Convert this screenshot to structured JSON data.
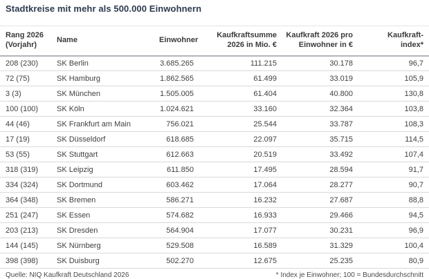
{
  "title": "Stadtkreise mit mehr als 500.000 Einwohnern",
  "colors": {
    "title_text": "#2c3a4e",
    "body_text": "#3f3f3f",
    "row_divider": "#d9d9dd",
    "header_rule": "#b2b4bc",
    "background": "#ffffff"
  },
  "table": {
    "columns": [
      {
        "label": "Rang 2026\n(Vorjahr)",
        "align": "left"
      },
      {
        "label": "Name",
        "align": "left"
      },
      {
        "label": "Einwohner",
        "align": "right"
      },
      {
        "label": "Kaufkraftsumme\n2026 in Mio. €",
        "align": "right"
      },
      {
        "label": "Kaufkraft 2026 pro\nEinwohner in €",
        "align": "right"
      },
      {
        "label": "Kaufkraft-\nindex*",
        "align": "right"
      }
    ],
    "rows": [
      {
        "rang": "208 (230)",
        "name": "SK Berlin",
        "einwohner": "3.685.265",
        "kaufkraftsumme": "111.215",
        "kaufkraft_pro_einwohner": "30.178",
        "index": "96,7"
      },
      {
        "rang": "72 (75)",
        "name": "SK Hamburg",
        "einwohner": "1.862.565",
        "kaufkraftsumme": "61.499",
        "kaufkraft_pro_einwohner": "33.019",
        "index": "105,9"
      },
      {
        "rang": "3 (3)",
        "name": "SK München",
        "einwohner": "1.505.005",
        "kaufkraftsumme": "61.404",
        "kaufkraft_pro_einwohner": "40.800",
        "index": "130,8"
      },
      {
        "rang": "100 (100)",
        "name": "SK Köln",
        "einwohner": "1.024.621",
        "kaufkraftsumme": "33.160",
        "kaufkraft_pro_einwohner": "32.364",
        "index": "103,8"
      },
      {
        "rang": "44 (46)",
        "name": "SK Frankfurt am Main",
        "einwohner": "756.021",
        "kaufkraftsumme": "25.544",
        "kaufkraft_pro_einwohner": "33.787",
        "index": "108,3"
      },
      {
        "rang": "17 (19)",
        "name": "SK Düsseldorf",
        "einwohner": "618.685",
        "kaufkraftsumme": "22.097",
        "kaufkraft_pro_einwohner": "35.715",
        "index": "114,5"
      },
      {
        "rang": "53 (55)",
        "name": "SK Stuttgart",
        "einwohner": "612.663",
        "kaufkraftsumme": "20.519",
        "kaufkraft_pro_einwohner": "33.492",
        "index": "107,4"
      },
      {
        "rang": "318 (319)",
        "name": "SK Leipzig",
        "einwohner": "611.850",
        "kaufkraftsumme": "17.495",
        "kaufkraft_pro_einwohner": "28.594",
        "index": "91,7"
      },
      {
        "rang": "334 (324)",
        "name": "SK Dortmund",
        "einwohner": "603.462",
        "kaufkraftsumme": "17.064",
        "kaufkraft_pro_einwohner": "28.277",
        "index": "90,7"
      },
      {
        "rang": "364 (348)",
        "name": "SK Bremen",
        "einwohner": "586.271",
        "kaufkraftsumme": "16.232",
        "kaufkraft_pro_einwohner": "27.687",
        "index": "88,8"
      },
      {
        "rang": "251 (247)",
        "name": "SK Essen",
        "einwohner": "574.682",
        "kaufkraftsumme": "16.933",
        "kaufkraft_pro_einwohner": "29.466",
        "index": "94,5"
      },
      {
        "rang": "203 (213)",
        "name": "SK Dresden",
        "einwohner": "564.904",
        "kaufkraftsumme": "17.077",
        "kaufkraft_pro_einwohner": "30.231",
        "index": "96,9"
      },
      {
        "rang": "144 (145)",
        "name": "SK Nürnberg",
        "einwohner": "529.508",
        "kaufkraftsumme": "16.589",
        "kaufkraft_pro_einwohner": "31.329",
        "index": "100,4"
      },
      {
        "rang": "398 (398)",
        "name": "SK Duisburg",
        "einwohner": "502.270",
        "kaufkraftsumme": "12.675",
        "kaufkraft_pro_einwohner": "25.235",
        "index": "80,9"
      }
    ]
  },
  "footer": {
    "source": "Quelle: NIQ Kaufkraft Deutschland 2026",
    "note": "* Index je Einwohner; 100 = Bundesdurchschnitt"
  }
}
